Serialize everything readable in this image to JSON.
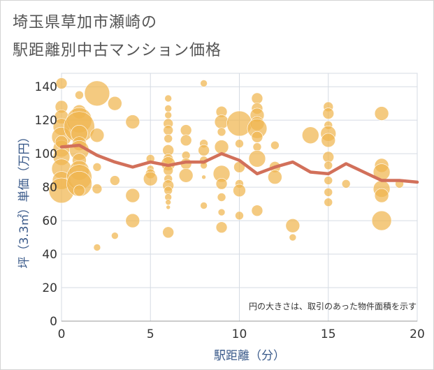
{
  "title_line1": "埼玉県草加市瀬崎の",
  "title_line2": "駅距離別中古マンション価格",
  "note": "円の大きさは、取引のあった物件面積を示す",
  "colors": {
    "bubble": "#f0b64f",
    "line": "#d2705a",
    "grid": "#d5dbe3",
    "axis_text": "#333333",
    "axis_label": "#3a5a8a"
  },
  "chart_data": {
    "type": "scatter",
    "title": "埼玉県草加市瀬崎の駅距離別中古マンション価格",
    "xlabel": "駅距離（分）",
    "ylabel": "坪（3.3㎡）単価（万円）",
    "xlim": [
      0,
      20
    ],
    "ylim": [
      0,
      148
    ],
    "xticks": [
      0,
      5,
      10,
      15,
      20
    ],
    "yticks": [
      0,
      20,
      40,
      60,
      80,
      100,
      120,
      140
    ],
    "grid": true,
    "bubbles": [
      {
        "x": 0,
        "y": 142,
        "r": 8
      },
      {
        "x": 0,
        "y": 128,
        "r": 9
      },
      {
        "x": 0,
        "y": 122,
        "r": 10
      },
      {
        "x": 0,
        "y": 116,
        "r": 12
      },
      {
        "x": 0,
        "y": 110,
        "r": 14
      },
      {
        "x": 0,
        "y": 103,
        "r": 12
      },
      {
        "x": 0,
        "y": 98,
        "r": 12
      },
      {
        "x": 0,
        "y": 91,
        "r": 14
      },
      {
        "x": 0,
        "y": 84,
        "r": 13
      },
      {
        "x": 0,
        "y": 78,
        "r": 18
      },
      {
        "x": 0,
        "y": 107,
        "r": 9
      },
      {
        "x": 1,
        "y": 135,
        "r": 6
      },
      {
        "x": 1,
        "y": 125,
        "r": 10
      },
      {
        "x": 1,
        "y": 120,
        "r": 18
      },
      {
        "x": 1,
        "y": 116,
        "r": 22
      },
      {
        "x": 1,
        "y": 112,
        "r": 12
      },
      {
        "x": 1,
        "y": 106,
        "r": 10
      },
      {
        "x": 1,
        "y": 102,
        "r": 14
      },
      {
        "x": 1,
        "y": 96,
        "r": 10
      },
      {
        "x": 1,
        "y": 90,
        "r": 14
      },
      {
        "x": 1,
        "y": 86,
        "r": 18
      },
      {
        "x": 1,
        "y": 82,
        "r": 18
      },
      {
        "x": 1,
        "y": 78,
        "r": 8
      },
      {
        "x": 2,
        "y": 136,
        "r": 18
      },
      {
        "x": 2,
        "y": 111,
        "r": 10
      },
      {
        "x": 2,
        "y": 92,
        "r": 6
      },
      {
        "x": 2,
        "y": 79,
        "r": 7
      },
      {
        "x": 2,
        "y": 44,
        "r": 5
      },
      {
        "x": 3,
        "y": 130,
        "r": 10
      },
      {
        "x": 3,
        "y": 84,
        "r": 7
      },
      {
        "x": 3,
        "y": 51,
        "r": 5
      },
      {
        "x": 4,
        "y": 119,
        "r": 10
      },
      {
        "x": 4,
        "y": 75,
        "r": 10
      },
      {
        "x": 4,
        "y": 60,
        "r": 10
      },
      {
        "x": 5,
        "y": 97,
        "r": 6
      },
      {
        "x": 5,
        "y": 91,
        "r": 5
      },
      {
        "x": 5,
        "y": 88,
        "r": 7
      },
      {
        "x": 5,
        "y": 85,
        "r": 10
      },
      {
        "x": 6,
        "y": 133,
        "r": 5
      },
      {
        "x": 6,
        "y": 127,
        "r": 5
      },
      {
        "x": 6,
        "y": 123,
        "r": 5
      },
      {
        "x": 6,
        "y": 118,
        "r": 7
      },
      {
        "x": 6,
        "y": 114,
        "r": 7
      },
      {
        "x": 6,
        "y": 109,
        "r": 6
      },
      {
        "x": 6,
        "y": 102,
        "r": 8
      },
      {
        "x": 6,
        "y": 97,
        "r": 7
      },
      {
        "x": 6,
        "y": 94,
        "r": 10
      },
      {
        "x": 6,
        "y": 90,
        "r": 7
      },
      {
        "x": 6,
        "y": 85,
        "r": 6
      },
      {
        "x": 6,
        "y": 81,
        "r": 8
      },
      {
        "x": 6,
        "y": 78,
        "r": 6
      },
      {
        "x": 6,
        "y": 74,
        "r": 5
      },
      {
        "x": 6,
        "y": 71,
        "r": 4
      },
      {
        "x": 6,
        "y": 68,
        "r": 3
      },
      {
        "x": 6,
        "y": 53,
        "r": 8
      },
      {
        "x": 7,
        "y": 114,
        "r": 8
      },
      {
        "x": 7,
        "y": 108,
        "r": 8
      },
      {
        "x": 7,
        "y": 99,
        "r": 6
      },
      {
        "x": 7,
        "y": 94,
        "r": 8
      },
      {
        "x": 7,
        "y": 87,
        "r": 10
      },
      {
        "x": 8,
        "y": 142,
        "r": 5
      },
      {
        "x": 8,
        "y": 106,
        "r": 6
      },
      {
        "x": 8,
        "y": 102,
        "r": 8
      },
      {
        "x": 8,
        "y": 96,
        "r": 6
      },
      {
        "x": 8,
        "y": 93,
        "r": 5
      },
      {
        "x": 8,
        "y": 86,
        "r": 3
      },
      {
        "x": 8,
        "y": 69,
        "r": 5
      },
      {
        "x": 9,
        "y": 125,
        "r": 8
      },
      {
        "x": 9,
        "y": 119,
        "r": 10
      },
      {
        "x": 9,
        "y": 113,
        "r": 6
      },
      {
        "x": 9,
        "y": 104,
        "r": 10
      },
      {
        "x": 9,
        "y": 88,
        "r": 12
      },
      {
        "x": 9,
        "y": 82,
        "r": 8
      },
      {
        "x": 9,
        "y": 74,
        "r": 6
      },
      {
        "x": 9,
        "y": 65,
        "r": 5
      },
      {
        "x": 9,
        "y": 56,
        "r": 8
      },
      {
        "x": 10,
        "y": 118,
        "r": 18
      },
      {
        "x": 10,
        "y": 106,
        "r": 6
      },
      {
        "x": 10,
        "y": 92,
        "r": 8
      },
      {
        "x": 10,
        "y": 82,
        "r": 6
      },
      {
        "x": 10,
        "y": 78,
        "r": 9
      },
      {
        "x": 10,
        "y": 63,
        "r": 6
      },
      {
        "x": 11,
        "y": 133,
        "r": 8
      },
      {
        "x": 11,
        "y": 127,
        "r": 8
      },
      {
        "x": 11,
        "y": 123,
        "r": 10
      },
      {
        "x": 11,
        "y": 118,
        "r": 10
      },
      {
        "x": 11,
        "y": 115,
        "r": 14
      },
      {
        "x": 11,
        "y": 110,
        "r": 8
      },
      {
        "x": 11,
        "y": 104,
        "r": 6
      },
      {
        "x": 11,
        "y": 97,
        "r": 12
      },
      {
        "x": 11,
        "y": 66,
        "r": 8
      },
      {
        "x": 12,
        "y": 105,
        "r": 6
      },
      {
        "x": 12,
        "y": 92,
        "r": 8
      },
      {
        "x": 12,
        "y": 86,
        "r": 10
      },
      {
        "x": 13,
        "y": 57,
        "r": 10
      },
      {
        "x": 13,
        "y": 50,
        "r": 5
      },
      {
        "x": 14,
        "y": 111,
        "r": 12
      },
      {
        "x": 15,
        "y": 128,
        "r": 7
      },
      {
        "x": 15,
        "y": 124,
        "r": 8
      },
      {
        "x": 15,
        "y": 117,
        "r": 6
      },
      {
        "x": 15,
        "y": 112,
        "r": 11
      },
      {
        "x": 15,
        "y": 108,
        "r": 10
      },
      {
        "x": 15,
        "y": 98,
        "r": 8
      },
      {
        "x": 15,
        "y": 93,
        "r": 6
      },
      {
        "x": 15,
        "y": 84,
        "r": 6
      },
      {
        "x": 15,
        "y": 77,
        "r": 6
      },
      {
        "x": 15,
        "y": 71,
        "r": 6
      },
      {
        "x": 16,
        "y": 82,
        "r": 6
      },
      {
        "x": 18,
        "y": 124,
        "r": 10
      },
      {
        "x": 18,
        "y": 93,
        "r": 10
      },
      {
        "x": 18,
        "y": 89,
        "r": 12
      },
      {
        "x": 18,
        "y": 79,
        "r": 12
      },
      {
        "x": 18,
        "y": 75,
        "r": 10
      },
      {
        "x": 18,
        "y": 60,
        "r": 14
      },
      {
        "x": 19,
        "y": 82,
        "r": 6
      }
    ],
    "series": [
      {
        "type": "line",
        "x": [
          0,
          1,
          2,
          3,
          4,
          5,
          6,
          7,
          8,
          9,
          10,
          11,
          12,
          13,
          14,
          15,
          16,
          17,
          18,
          19,
          20
        ],
        "values": [
          104,
          105,
          99,
          95,
          92,
          95,
          93,
          95,
          95,
          100,
          96,
          88,
          92,
          95,
          89,
          88,
          94,
          89,
          84,
          84,
          83
        ]
      }
    ]
  }
}
